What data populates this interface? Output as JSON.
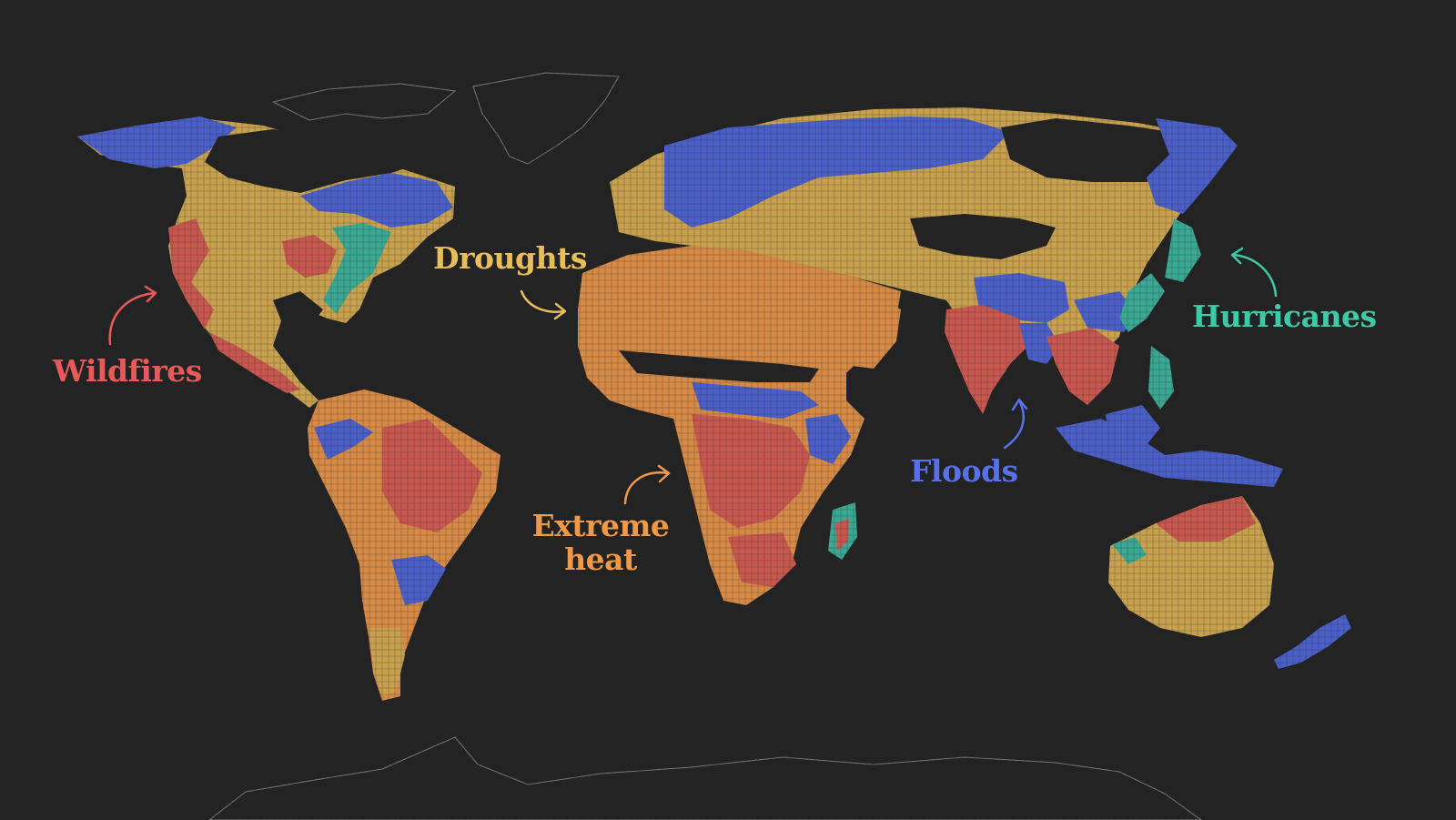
{
  "colors": {
    "background": "#232323",
    "wildfires": "#e85a5a",
    "droughts": "#e8be5a",
    "extreme_heat": "#f09a48",
    "floods": "#5870e8",
    "hurricanes": "#3ec9a7",
    "outline": "#7a7a7a"
  },
  "labels": {
    "droughts": "Droughts",
    "wildfires": "Wildfires",
    "extreme_heat_line1": "Extreme",
    "extreme_heat_line2": "heat",
    "floods": "Floods",
    "hurricanes": "Hurricanes"
  }
}
